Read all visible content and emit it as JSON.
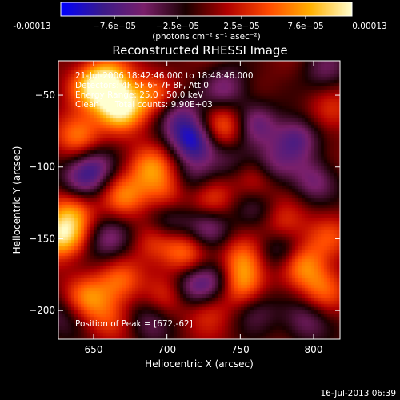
{
  "chart_data": {
    "type": "heatmap",
    "title": "Reconstructed RHESSI Image",
    "xlabel": "Heliocentric X (arcsec)",
    "ylabel": "Heliocentric Y (arcsec)",
    "xlim": [
      626,
      818
    ],
    "ylim": [
      -220,
      -26
    ],
    "x_ticks": [
      650,
      700,
      750,
      800
    ],
    "y_ticks": [
      -50,
      -100,
      -150,
      -200
    ],
    "colorbar": {
      "min": -0.00013,
      "max": 0.00013,
      "tick_labels": [
        "-0.00013",
        "−7.6e−05",
        "−2.5e−05",
        "2.5e−05",
        "7.6e−05",
        "0.00013"
      ],
      "units": "(photons cm⁻² s⁻¹ asec⁻²)",
      "colors": [
        "#0000ff",
        "#3a1a8a",
        "#7a1f6a",
        "#1a0000",
        "#b00000",
        "#ff4a00",
        "#ffb000",
        "#ffffd0"
      ]
    },
    "annotations": [
      "21-Jul-2006 18:42:46.000 to 18:48:46.000",
      "Detectors: 4F 5F 6F 7F 8F, Att 0",
      "Energy Range: 25.0 - 50.0 keV",
      "Clean      Total counts: 9.90E+03",
      "Position of Peak = [672,-62]"
    ],
    "peak": {
      "x": 672,
      "y": -62
    },
    "footer_timestamp": "16-Jul-2013 06:39",
    "blobs": [
      {
        "x": 668,
        "y": -58,
        "v": 1.0
      },
      {
        "x": 660,
        "y": -40,
        "v": 0.75
      },
      {
        "x": 648,
        "y": -45,
        "v": 0.55
      },
      {
        "x": 640,
        "y": -78,
        "v": 0.6
      },
      {
        "x": 690,
        "y": -50,
        "v": 0.45
      },
      {
        "x": 628,
        "y": -148,
        "v": 0.85
      },
      {
        "x": 636,
        "y": -130,
        "v": 0.55
      },
      {
        "x": 670,
        "y": -120,
        "v": 0.5
      },
      {
        "x": 688,
        "y": -100,
        "v": 0.55
      },
      {
        "x": 700,
        "y": -118,
        "v": 0.45
      },
      {
        "x": 692,
        "y": -150,
        "v": 0.4
      },
      {
        "x": 712,
        "y": -160,
        "v": 0.55
      },
      {
        "x": 668,
        "y": -180,
        "v": 0.45
      },
      {
        "x": 645,
        "y": -190,
        "v": 0.5
      },
      {
        "x": 660,
        "y": -205,
        "v": 0.35
      },
      {
        "x": 700,
        "y": -188,
        "v": 0.3
      },
      {
        "x": 728,
        "y": -200,
        "v": 0.35
      },
      {
        "x": 740,
        "y": -72,
        "v": 0.55
      },
      {
        "x": 730,
        "y": -122,
        "v": 0.4
      },
      {
        "x": 752,
        "y": -165,
        "v": 0.55
      },
      {
        "x": 750,
        "y": -182,
        "v": 0.6
      },
      {
        "x": 762,
        "y": -108,
        "v": 0.45
      },
      {
        "x": 780,
        "y": -140,
        "v": 0.4
      },
      {
        "x": 792,
        "y": -168,
        "v": 0.55
      },
      {
        "x": 806,
        "y": -185,
        "v": 0.45
      },
      {
        "x": 810,
        "y": -150,
        "v": 0.35
      },
      {
        "x": 812,
        "y": -62,
        "v": 0.3
      },
      {
        "x": 718,
        "y": -82,
        "v": -0.8
      },
      {
        "x": 708,
        "y": -64,
        "v": -0.45
      },
      {
        "x": 740,
        "y": -45,
        "v": -0.45
      },
      {
        "x": 760,
        "y": -70,
        "v": -0.5
      },
      {
        "x": 788,
        "y": -80,
        "v": -0.6
      },
      {
        "x": 770,
        "y": -100,
        "v": -0.5
      },
      {
        "x": 800,
        "y": -110,
        "v": -0.45
      },
      {
        "x": 650,
        "y": -100,
        "v": -0.55
      },
      {
        "x": 640,
        "y": -110,
        "v": -0.4
      },
      {
        "x": 660,
        "y": -150,
        "v": -0.45
      },
      {
        "x": 700,
        "y": -140,
        "v": -0.5
      },
      {
        "x": 718,
        "y": -110,
        "v": -0.35
      },
      {
        "x": 728,
        "y": -142,
        "v": -0.45
      },
      {
        "x": 718,
        "y": -183,
        "v": -0.55
      },
      {
        "x": 735,
        "y": -178,
        "v": -0.45
      },
      {
        "x": 778,
        "y": -158,
        "v": -0.45
      },
      {
        "x": 795,
        "y": -208,
        "v": -0.4
      },
      {
        "x": 688,
        "y": -208,
        "v": -0.35
      },
      {
        "x": 760,
        "y": -200,
        "v": -0.35
      },
      {
        "x": 628,
        "y": -205,
        "v": -0.3
      },
      {
        "x": 808,
        "y": -32,
        "v": -0.35
      },
      {
        "x": 760,
        "y": -130,
        "v": -0.3
      },
      {
        "x": 745,
        "y": -95,
        "v": -0.3
      }
    ]
  }
}
